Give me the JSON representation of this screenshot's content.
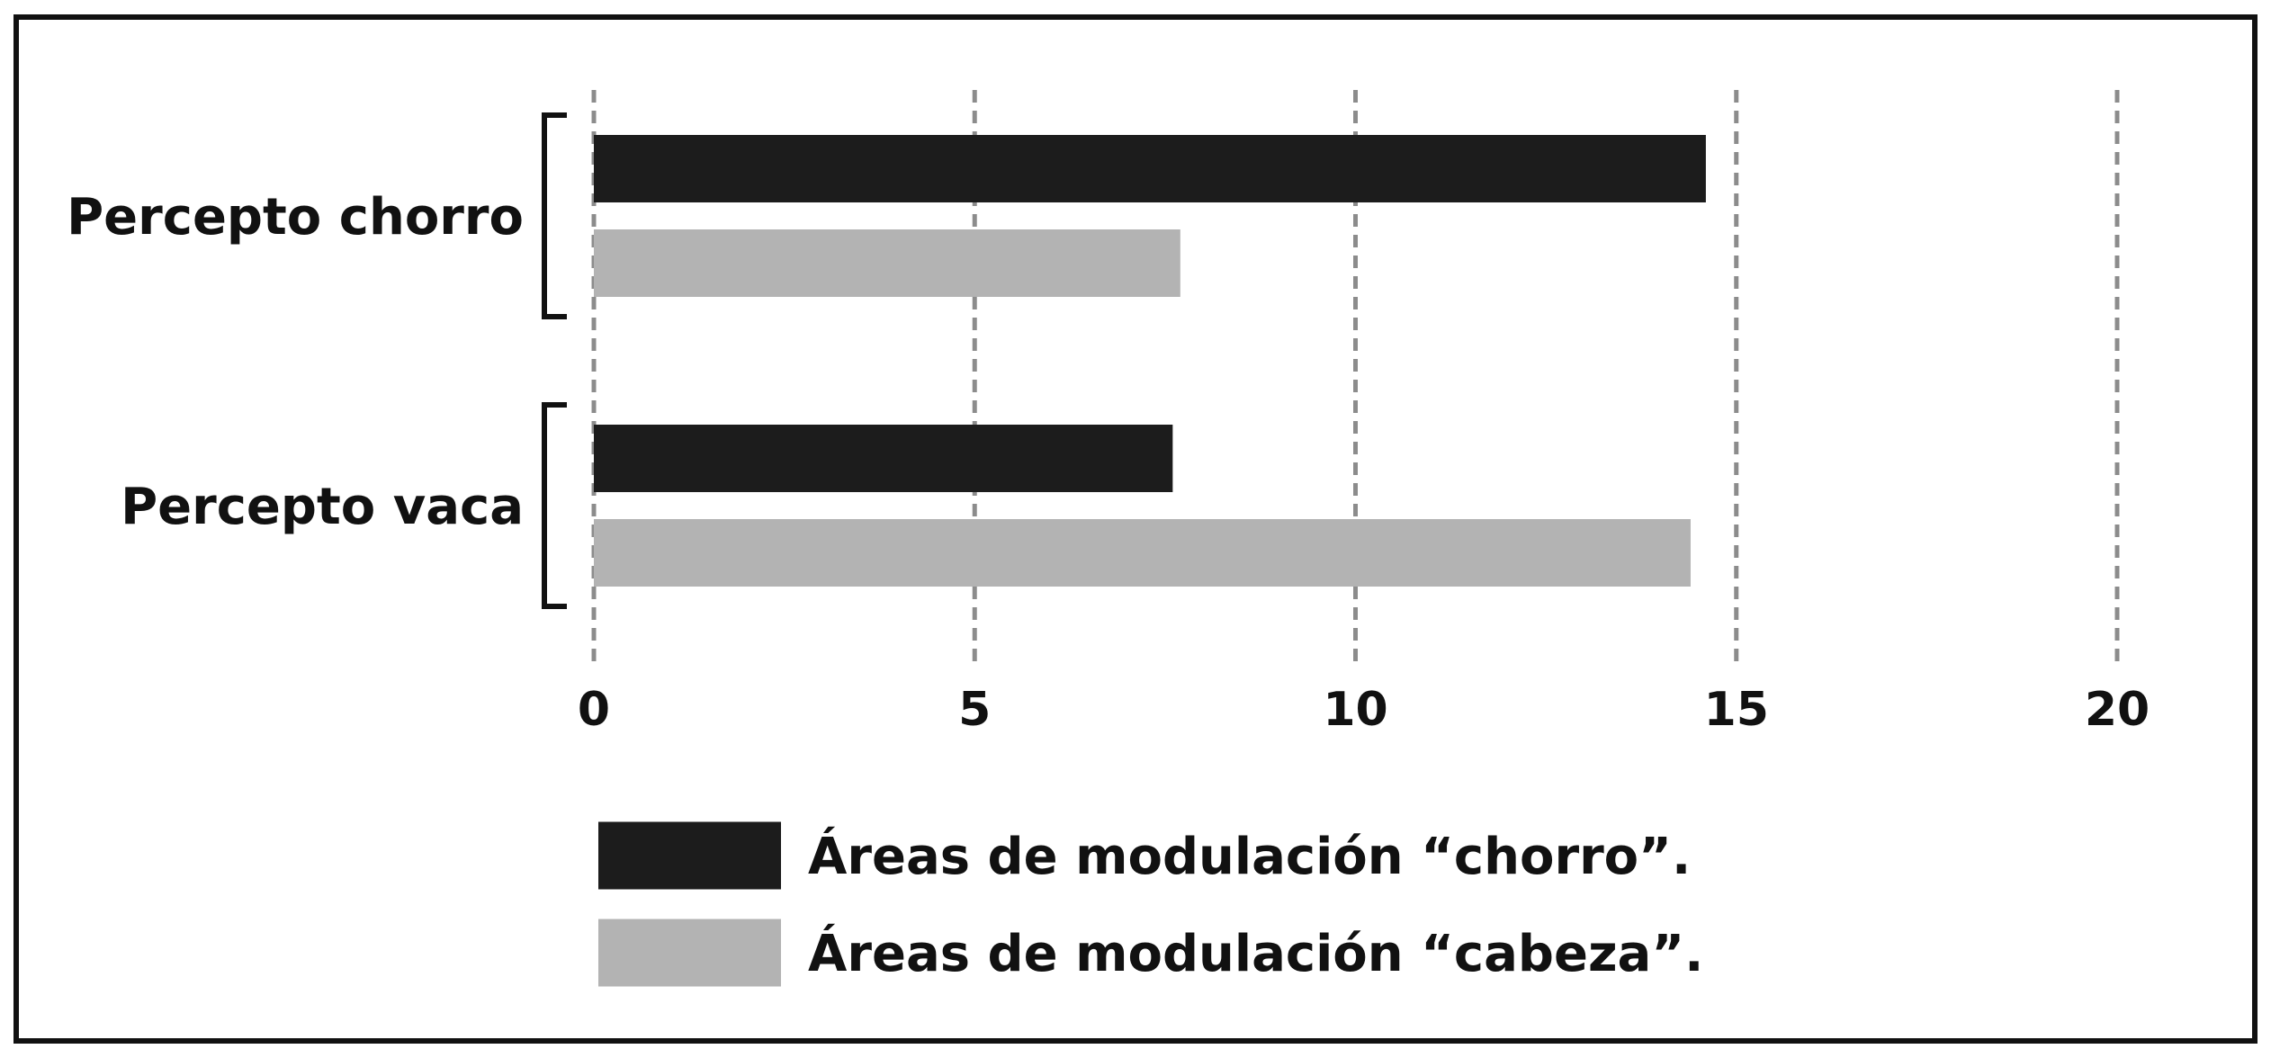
{
  "chart_data": {
    "type": "bar",
    "orientation": "horizontal",
    "title": "",
    "xlabel": "",
    "ylabel": "",
    "categories": [
      "Percepto chorro",
      "Percepto vaca"
    ],
    "series": [
      {
        "name": "Áreas de modulación “chorro”.",
        "color": "#1c1c1c",
        "values": [
          14.6,
          7.6
        ]
      },
      {
        "name": "Áreas de modulación “cabeza”.",
        "color": "#b3b3b3",
        "values": [
          7.7,
          14.4
        ]
      }
    ],
    "xlim": [
      0,
      20
    ],
    "xticks": [
      "0",
      "5",
      "10",
      "15",
      "20"
    ],
    "grid": "vertical dashed",
    "legend_position": "bottom"
  }
}
